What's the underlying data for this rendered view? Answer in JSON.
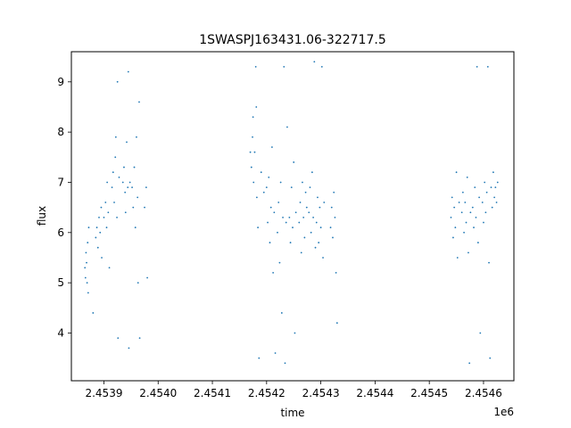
{
  "chart_data": {
    "type": "scatter",
    "title": "1SWASPJ163431.06-322717.5",
    "xlabel": "time",
    "ylabel": "flux",
    "x_offset_label": "1e6",
    "xlim": [
      2453840,
      2454656
    ],
    "ylim": [
      3.05,
      9.6
    ],
    "x_ticks": [
      2453900,
      2454000,
      2454100,
      2454200,
      2454300,
      2454400,
      2454500,
      2454600
    ],
    "x_tick_labels": [
      "2.4539",
      "2.4540",
      "2.4541",
      "2.4542",
      "2.4543",
      "2.4544",
      "2.4545",
      "2.4546"
    ],
    "y_ticks": [
      4,
      5,
      6,
      7,
      8,
      9
    ],
    "y_tick_labels": [
      "4",
      "5",
      "6",
      "7",
      "8",
      "9"
    ],
    "grid": false,
    "legend": "none",
    "marker_color": "#1f77b4",
    "series": [
      {
        "points": [
          [
            2453865,
            5.3
          ],
          [
            2453866,
            5.1
          ],
          [
            2453867,
            5.6
          ],
          [
            2453868,
            5.4
          ],
          [
            2453869,
            5.0
          ],
          [
            2453870,
            5.8
          ],
          [
            2453871,
            4.8
          ],
          [
            2453872,
            6.1
          ],
          [
            2453880,
            4.4
          ],
          [
            2453885,
            5.9
          ],
          [
            2453887,
            6.1
          ],
          [
            2453889,
            5.7
          ],
          [
            2453891,
            6.3
          ],
          [
            2453893,
            6.0
          ],
          [
            2453895,
            6.5
          ],
          [
            2453896,
            5.5
          ],
          [
            2453900,
            6.3
          ],
          [
            2453903,
            6.6
          ],
          [
            2453905,
            6.1
          ],
          [
            2453906,
            7.0
          ],
          [
            2453908,
            6.4
          ],
          [
            2453910,
            5.3
          ],
          [
            2453915,
            6.9
          ],
          [
            2453917,
            7.2
          ],
          [
            2453919,
            6.6
          ],
          [
            2453921,
            7.5
          ],
          [
            2453922,
            7.9
          ],
          [
            2453924,
            6.3
          ],
          [
            2453925,
            9.0
          ],
          [
            2453926,
            3.9
          ],
          [
            2453928,
            7.1
          ],
          [
            2453935,
            7.0
          ],
          [
            2453937,
            7.3
          ],
          [
            2453939,
            6.8
          ],
          [
            2453940,
            6.4
          ],
          [
            2453942,
            7.8
          ],
          [
            2453944,
            6.9
          ],
          [
            2453945,
            9.2
          ],
          [
            2453946,
            3.7
          ],
          [
            2453948,
            7.0
          ],
          [
            2453952,
            6.9
          ],
          [
            2453954,
            6.5
          ],
          [
            2453956,
            7.3
          ],
          [
            2453958,
            6.1
          ],
          [
            2453960,
            7.9
          ],
          [
            2453962,
            6.7
          ],
          [
            2453963,
            5.0
          ],
          [
            2453965,
            8.6
          ],
          [
            2453966,
            3.9
          ],
          [
            2453975,
            6.5
          ],
          [
            2453978,
            6.9
          ],
          [
            2453980,
            5.1
          ],
          [
            2454170,
            7.6
          ],
          [
            2454172,
            7.3
          ],
          [
            2454174,
            7.9
          ],
          [
            2454175,
            8.3
          ],
          [
            2454176,
            7.0
          ],
          [
            2454178,
            7.6
          ],
          [
            2454180,
            9.3
          ],
          [
            2454181,
            8.5
          ],
          [
            2454182,
            6.7
          ],
          [
            2454184,
            6.1
          ],
          [
            2454186,
            3.5
          ],
          [
            2454190,
            7.2
          ],
          [
            2454195,
            6.8
          ],
          [
            2454200,
            6.9
          ],
          [
            2454202,
            6.2
          ],
          [
            2454204,
            7.1
          ],
          [
            2454206,
            5.8
          ],
          [
            2454208,
            6.5
          ],
          [
            2454210,
            7.7
          ],
          [
            2454212,
            5.2
          ],
          [
            2454214,
            6.4
          ],
          [
            2454216,
            3.6
          ],
          [
            2454220,
            6.0
          ],
          [
            2454222,
            6.6
          ],
          [
            2454224,
            5.4
          ],
          [
            2454226,
            7.0
          ],
          [
            2454228,
            4.4
          ],
          [
            2454230,
            6.3
          ],
          [
            2454232,
            9.3
          ],
          [
            2454234,
            3.4
          ],
          [
            2454236,
            6.2
          ],
          [
            2454238,
            8.1
          ],
          [
            2454242,
            6.3
          ],
          [
            2454244,
            5.8
          ],
          [
            2454246,
            6.9
          ],
          [
            2454248,
            6.1
          ],
          [
            2454250,
            7.4
          ],
          [
            2454252,
            4.0
          ],
          [
            2454254,
            6.4
          ],
          [
            2454260,
            6.2
          ],
          [
            2454262,
            6.6
          ],
          [
            2454264,
            5.6
          ],
          [
            2454266,
            7.0
          ],
          [
            2454268,
            6.3
          ],
          [
            2454270,
            5.9
          ],
          [
            2454272,
            6.8
          ],
          [
            2454274,
            6.5
          ],
          [
            2454278,
            6.4
          ],
          [
            2454280,
            6.9
          ],
          [
            2454282,
            6.0
          ],
          [
            2454284,
            7.2
          ],
          [
            2454286,
            6.3
          ],
          [
            2454288,
            9.4
          ],
          [
            2454290,
            5.7
          ],
          [
            2454292,
            6.2
          ],
          [
            2454294,
            6.7
          ],
          [
            2454296,
            5.8
          ],
          [
            2454298,
            6.5
          ],
          [
            2454300,
            6.1
          ],
          [
            2454302,
            9.3
          ],
          [
            2454304,
            5.5
          ],
          [
            2454306,
            6.6
          ],
          [
            2454318,
            6.1
          ],
          [
            2454320,
            6.5
          ],
          [
            2454322,
            5.9
          ],
          [
            2454324,
            6.8
          ],
          [
            2454326,
            6.3
          ],
          [
            2454328,
            5.2
          ],
          [
            2454330,
            4.2
          ],
          [
            2454540,
            6.3
          ],
          [
            2454542,
            6.7
          ],
          [
            2454544,
            5.9
          ],
          [
            2454546,
            6.5
          ],
          [
            2454548,
            6.1
          ],
          [
            2454550,
            7.2
          ],
          [
            2454552,
            5.5
          ],
          [
            2454555,
            6.6
          ],
          [
            2454560,
            6.4
          ],
          [
            2454562,
            6.8
          ],
          [
            2454564,
            6.0
          ],
          [
            2454566,
            6.6
          ],
          [
            2454568,
            6.2
          ],
          [
            2454570,
            7.1
          ],
          [
            2454572,
            5.6
          ],
          [
            2454574,
            3.4
          ],
          [
            2454576,
            6.4
          ],
          [
            2454580,
            6.5
          ],
          [
            2454582,
            6.1
          ],
          [
            2454584,
            6.9
          ],
          [
            2454586,
            6.3
          ],
          [
            2454588,
            9.3
          ],
          [
            2454590,
            5.8
          ],
          [
            2454592,
            6.7
          ],
          [
            2454594,
            4.0
          ],
          [
            2454598,
            6.6
          ],
          [
            2454600,
            6.2
          ],
          [
            2454602,
            7.0
          ],
          [
            2454604,
            6.4
          ],
          [
            2454606,
            6.8
          ],
          [
            2454608,
            9.3
          ],
          [
            2454610,
            5.4
          ],
          [
            2454612,
            3.5
          ],
          [
            2454614,
            6.9
          ],
          [
            2454616,
            6.5
          ],
          [
            2454618,
            7.2
          ],
          [
            2454620,
            6.7
          ],
          [
            2454622,
            6.9
          ],
          [
            2454624,
            6.6
          ],
          [
            2454626,
            7.0
          ]
        ]
      }
    ]
  }
}
